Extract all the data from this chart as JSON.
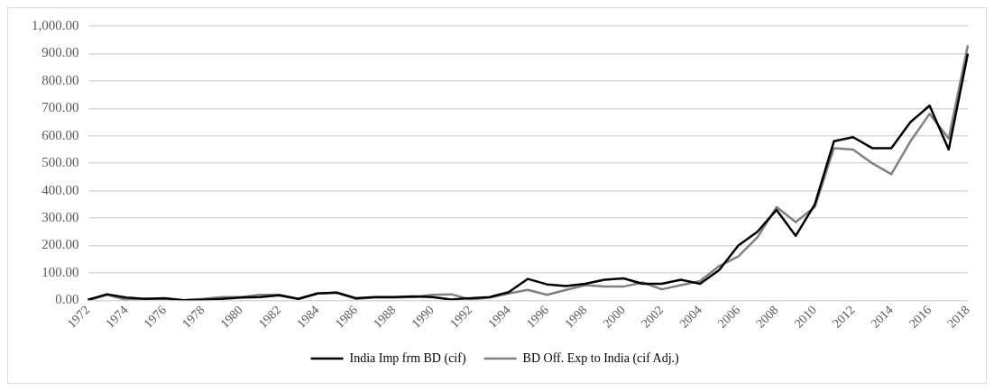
{
  "chart_data": {
    "type": "line",
    "categories": [
      "1972",
      null,
      "1974",
      null,
      "1976",
      null,
      "1978",
      null,
      "1980",
      null,
      "1982",
      null,
      "1984",
      null,
      "1986",
      null,
      "1988",
      null,
      "1990",
      null,
      "1992",
      null,
      "1994",
      null,
      "1996",
      null,
      "1998",
      null,
      "2000",
      null,
      "2002",
      null,
      "2004",
      null,
      "2006",
      null,
      "2008",
      null,
      "2010",
      null,
      "2012",
      null,
      "2014",
      null,
      "2016",
      null,
      "2018"
    ],
    "series": [
      {
        "name": "India Imp frm BD (cif)",
        "color": "#000000",
        "values": [
          2,
          22,
          10,
          5,
          8,
          0,
          2,
          5,
          10,
          12,
          18,
          5,
          25,
          28,
          8,
          12,
          12,
          14,
          12,
          3,
          8,
          12,
          30,
          78,
          58,
          52,
          60,
          75,
          80,
          60,
          60,
          75,
          60,
          110,
          200,
          250,
          330,
          235,
          350,
          580,
          595,
          555,
          555,
          650,
          710,
          550,
          900
        ]
      },
      {
        "name": "BD Off. Exp to India (cif Adj.)",
        "color": "#808080",
        "values": [
          0,
          20,
          2,
          5,
          5,
          0,
          5,
          12,
          12,
          20,
          20,
          5,
          25,
          28,
          5,
          10,
          10,
          12,
          20,
          22,
          3,
          10,
          25,
          38,
          20,
          38,
          55,
          50,
          50,
          65,
          40,
          55,
          70,
          125,
          160,
          230,
          340,
          285,
          340,
          555,
          550,
          500,
          460,
          580,
          680,
          590,
          930
        ]
      }
    ],
    "ylim": [
      0,
      1000
    ],
    "yticks": [
      {
        "value": 0,
        "label": "0.00"
      },
      {
        "value": 100,
        "label": "100.00"
      },
      {
        "value": 200,
        "label": "200.00"
      },
      {
        "value": 300,
        "label": "300.00"
      },
      {
        "value": 400,
        "label": "400.00"
      },
      {
        "value": 500,
        "label": "500.00"
      },
      {
        "value": 600,
        "label": "600.00"
      },
      {
        "value": 700,
        "label": "700.00"
      },
      {
        "value": 800,
        "label": "800.00"
      },
      {
        "value": 900,
        "label": "900.00"
      },
      {
        "value": 1000,
        "label": "1,000.00"
      }
    ],
    "grid": "y",
    "legend": "bottom",
    "marker": "none",
    "line_style": "solid"
  }
}
